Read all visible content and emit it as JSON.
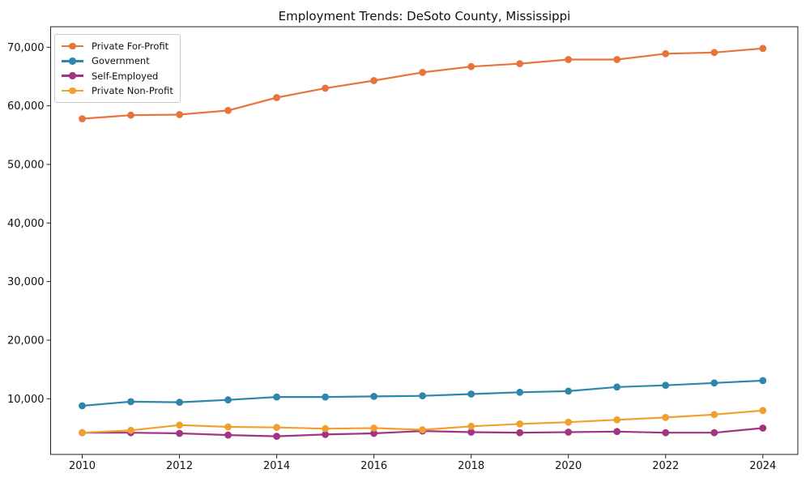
{
  "chart_data": {
    "type": "line",
    "title": "Employment Trends: DeSoto County, Mississippi",
    "xlabel": "",
    "ylabel": "",
    "x": [
      2010,
      2011,
      2012,
      2013,
      2014,
      2015,
      2016,
      2017,
      2018,
      2019,
      2020,
      2021,
      2022,
      2023,
      2024
    ],
    "series": [
      {
        "name": "Private For-Profit",
        "color": "#e8743b",
        "values": [
          57800,
          58400,
          58500,
          59200,
          61400,
          63000,
          64300,
          65700,
          66700,
          67200,
          67900,
          67900,
          68900,
          69100,
          69800
        ]
      },
      {
        "name": "Government",
        "color": "#2e86ab",
        "values": [
          8800,
          9500,
          9400,
          9800,
          10300,
          10300,
          10400,
          10500,
          10800,
          11100,
          11300,
          12000,
          12300,
          12700,
          13100
        ]
      },
      {
        "name": "Self-Employed",
        "color": "#a23582",
        "values": [
          4200,
          4200,
          4100,
          3800,
          3600,
          3900,
          4100,
          4500,
          4300,
          4200,
          4300,
          4400,
          4200,
          4200,
          5000
        ]
      },
      {
        "name": "Private Non-Profit",
        "color": "#f0a02e",
        "values": [
          4200,
          4600,
          5500,
          5200,
          5100,
          4900,
          5000,
          4700,
          5300,
          5700,
          6000,
          6400,
          6800,
          7300,
          8000
        ]
      }
    ],
    "xticks": [
      2010,
      2012,
      2014,
      2016,
      2018,
      2020,
      2022,
      2024
    ],
    "yticks": [
      10000,
      20000,
      30000,
      40000,
      50000,
      60000,
      70000
    ],
    "ytick_labels": [
      "10,000",
      "20,000",
      "30,000",
      "40,000",
      "50,000",
      "60,000",
      "70,000"
    ],
    "xlim": [
      2009.35,
      2024.72
    ],
    "ylim": [
      500,
      73500
    ],
    "grid": false,
    "legend_position": "upper-left",
    "marker": "circle",
    "axis_color": "#222222"
  }
}
